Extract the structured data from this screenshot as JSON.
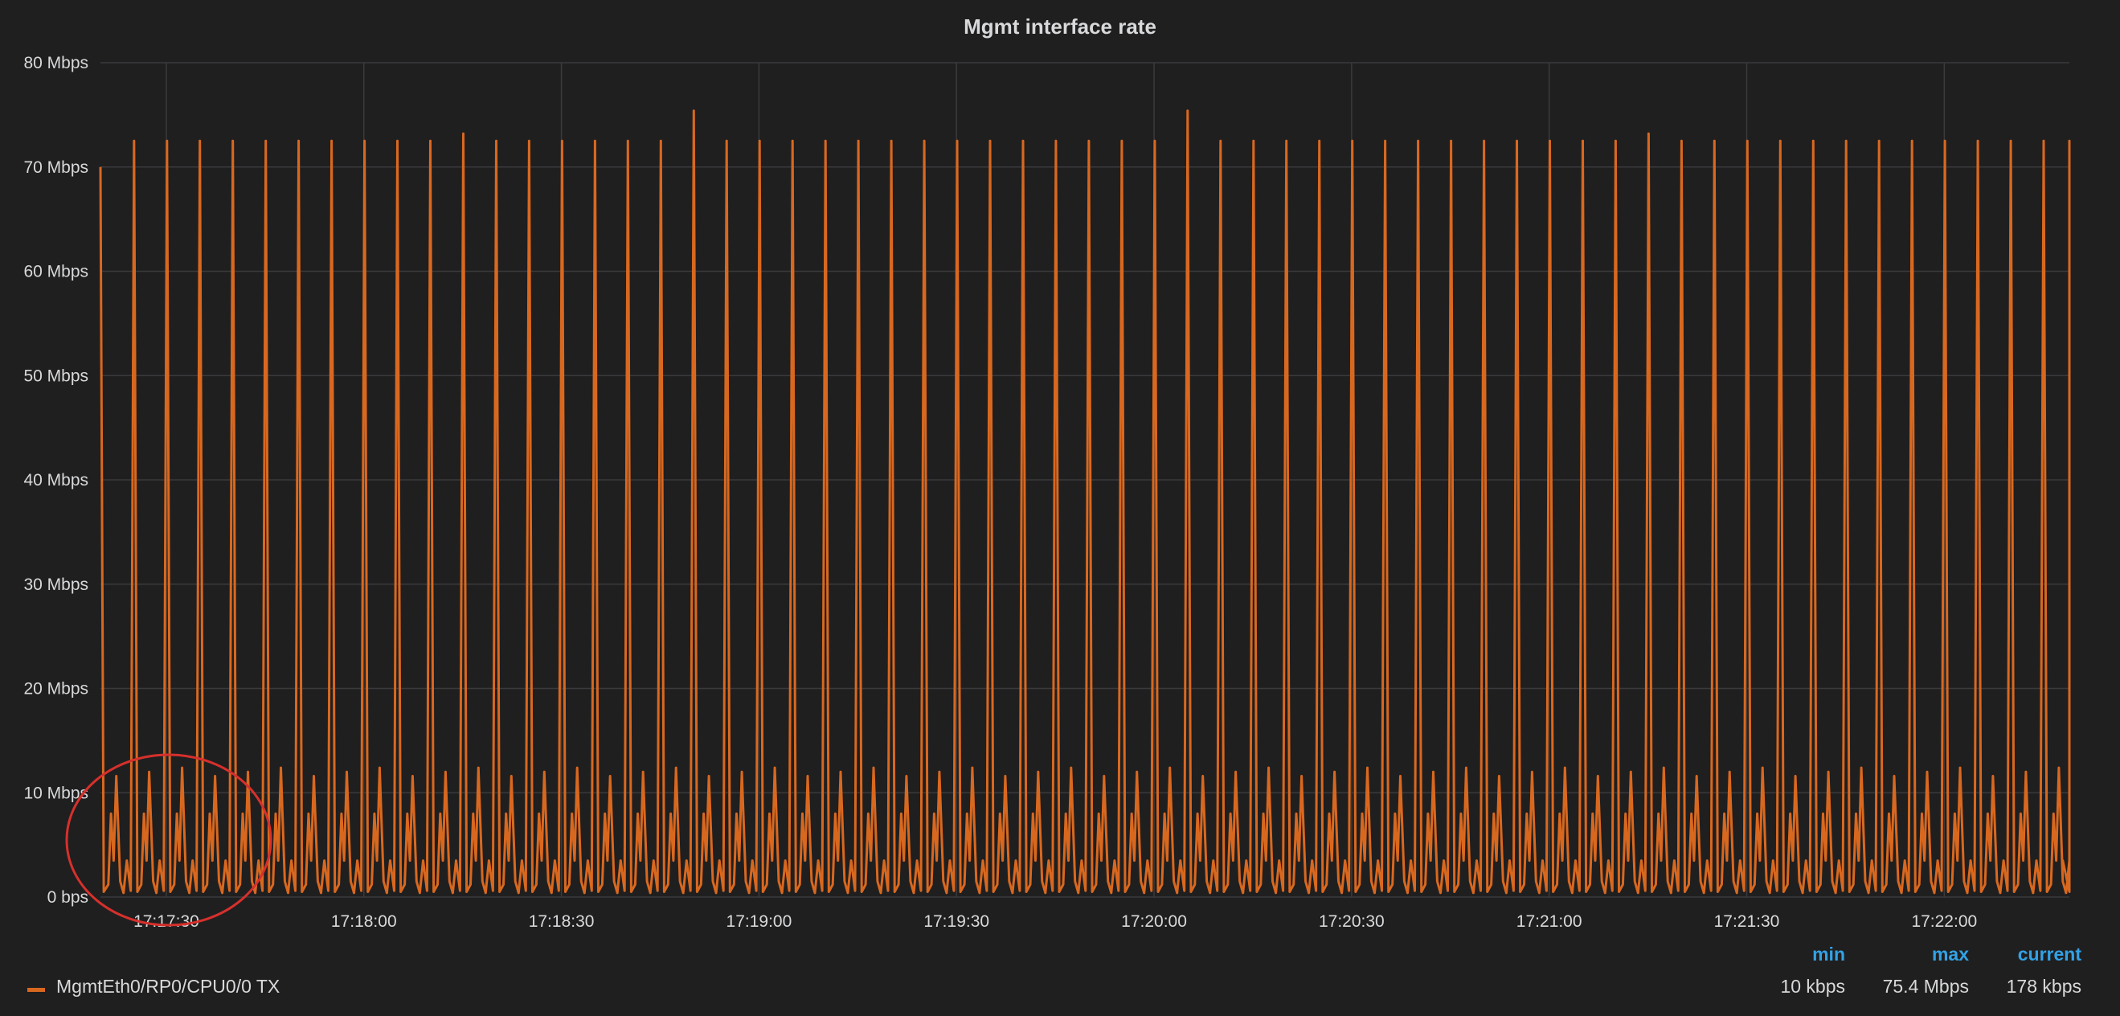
{
  "chart_data": {
    "type": "line",
    "title": "Mgmt interface rate",
    "y_unit": "Mbps",
    "ylim": [
      0,
      80
    ],
    "y_ticks": [
      "0 bps",
      "10 Mbps",
      "20 Mbps",
      "30 Mbps",
      "40 Mbps",
      "50 Mbps",
      "60 Mbps",
      "70 Mbps",
      "80 Mbps"
    ],
    "x_ticks": [
      "17:17:30",
      "17:18:00",
      "17:18:30",
      "17:19:00",
      "17:19:30",
      "17:20:00",
      "17:20:30",
      "17:21:00",
      "17:21:30",
      "17:22:00"
    ],
    "xlim": [
      "17:17:20",
      "17:22:19"
    ],
    "grid": true,
    "series": [
      {
        "name": "MgmtEth0/RP0/CPU0/0 TX",
        "color": "#d9681f",
        "pattern": {
          "period_seconds": 5,
          "peak_value_mbps": 72.5,
          "secondary_peak_mbps": 12,
          "baseline_mbps": 0.5,
          "occasional_peaks_mbps": [
            73.2,
            75.4,
            75.4,
            73.2
          ]
        }
      }
    ]
  },
  "legend": {
    "headers": {
      "min": "min",
      "max": "max",
      "current": "current"
    },
    "rows": [
      {
        "name": "MgmtEth0/RP0/CPU0/0 TX",
        "min": "10 kbps",
        "max": "75.4 Mbps",
        "current": "178 kbps"
      }
    ]
  }
}
